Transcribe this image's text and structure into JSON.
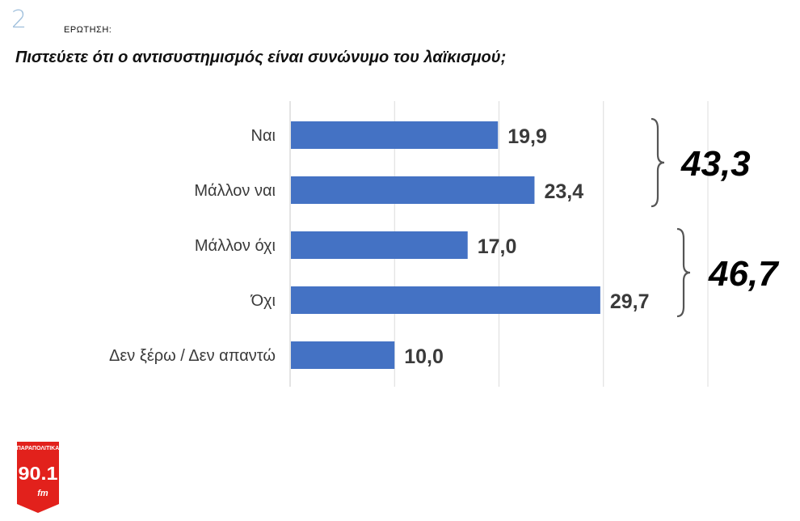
{
  "question": {
    "number": "2",
    "label": "ΕΡΩΤΗΣΗ:",
    "text": "Πιστεύετε ότι ο αντισυστημισμός είναι συνώνυμο του λαϊκισμού;"
  },
  "chart_data": {
    "type": "bar",
    "orientation": "horizontal",
    "categories": [
      "Ναι",
      "Μάλλον ναι",
      "Μάλλον όχι",
      "Όχι",
      "Δεν ξέρω / Δεν απαντώ"
    ],
    "values": [
      19.9,
      23.4,
      17.0,
      29.7,
      10.0
    ],
    "value_labels": [
      "19,9",
      "23,4",
      "17,0",
      "29,7",
      "10,0"
    ],
    "xlim": [
      0,
      40
    ],
    "grid": true,
    "bar_color": "#4472c4",
    "groups": [
      {
        "categories": [
          "Ναι",
          "Μάλλον ναι"
        ],
        "total": 43.3,
        "total_label": "43,3"
      },
      {
        "categories": [
          "Μάλλον όχι",
          "Όχι"
        ],
        "total": 46.7,
        "total_label": "46,7"
      }
    ]
  },
  "logo": {
    "top_text": "ΠΑΡΑΠΟΛΙΤΙΚΑ",
    "frequency": "90.1",
    "band": "fm",
    "color": "#e2211c"
  }
}
